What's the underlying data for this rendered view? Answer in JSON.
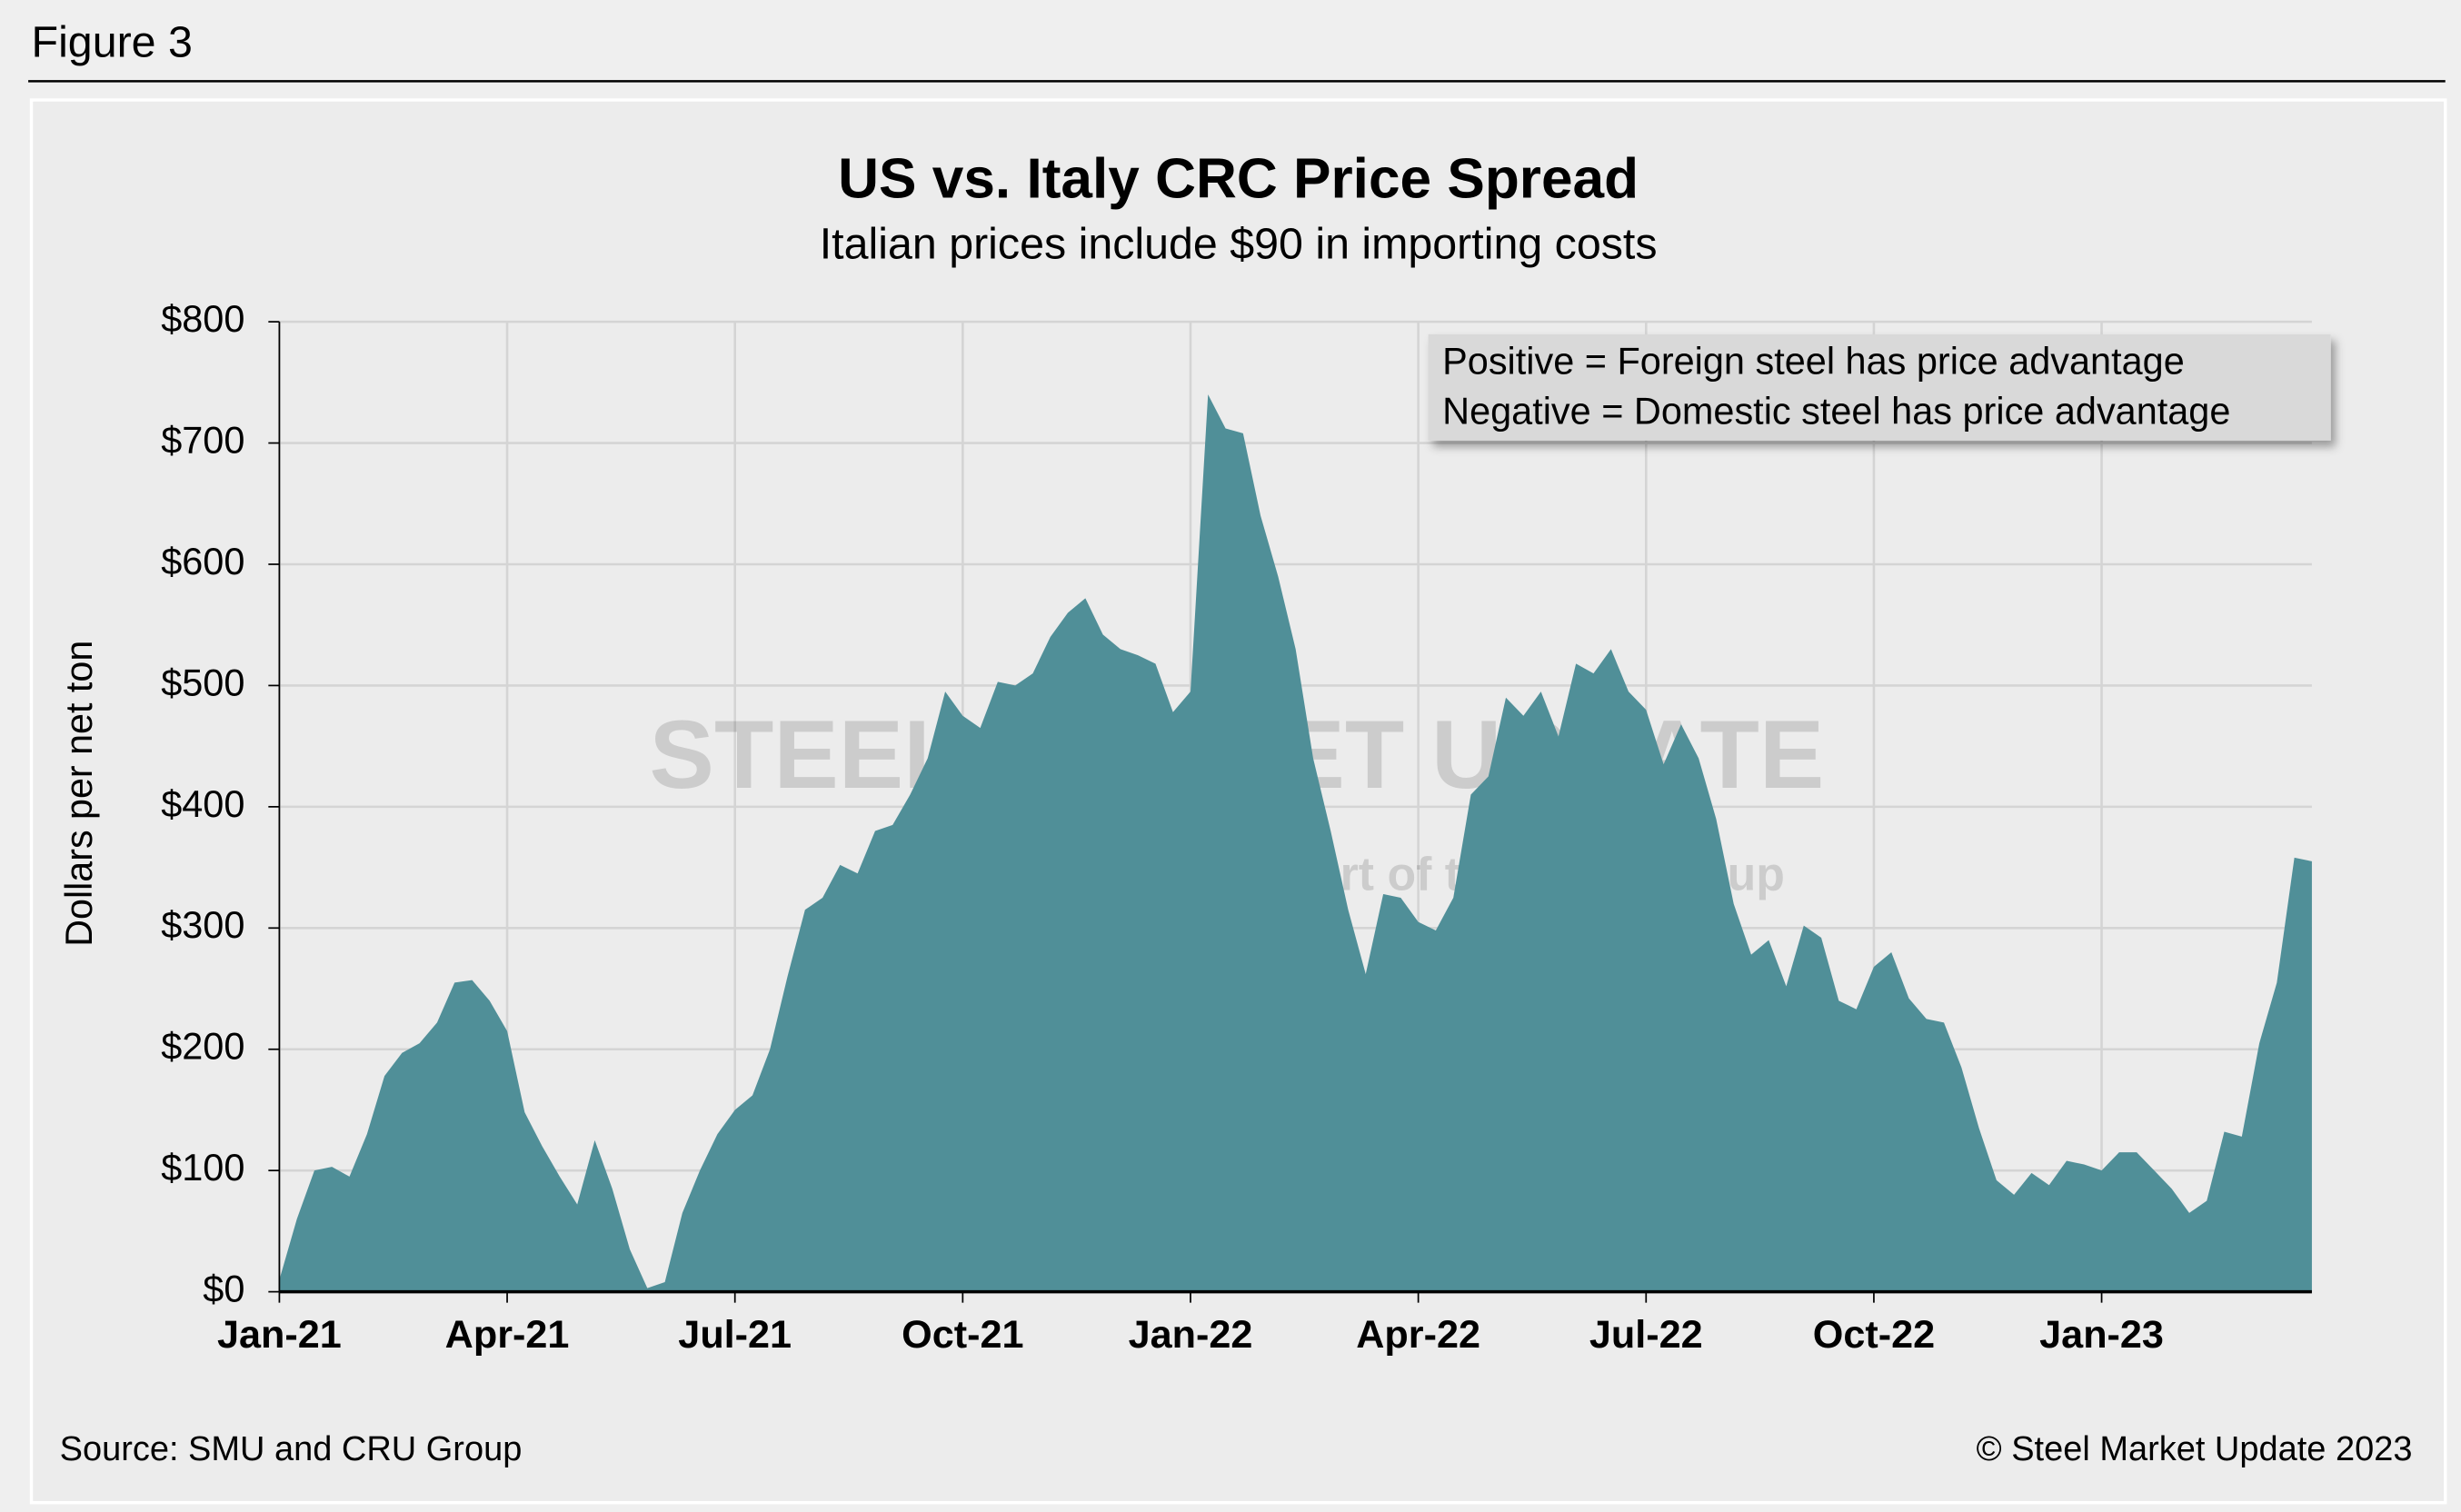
{
  "figure_label": "Figure 3",
  "source": "Source: SMU and CRU Group",
  "copyright": "© Steel Market Update 2023",
  "watermark": {
    "brand": "STEEL MARKET UPDATE",
    "tagline": "part of the CRU Group"
  },
  "chart_data": {
    "type": "area",
    "title": "US vs. Italy CRC Price Spread",
    "subtitle": "Italian prices include $90 in importing costs",
    "y_label": "Dollars per net ton",
    "annotation": [
      "Positive = Foreign steel has price advantage",
      "Negative = Domestic steel has price advantage"
    ],
    "color": "#508f98",
    "grid": true,
    "ylim": [
      0,
      800
    ],
    "yticks": [
      {
        "value": 0,
        "label": "$0"
      },
      {
        "value": 100,
        "label": "$100"
      },
      {
        "value": 200,
        "label": "$200"
      },
      {
        "value": 300,
        "label": "$300"
      },
      {
        "value": 400,
        "label": "$400"
      },
      {
        "value": 500,
        "label": "$500"
      },
      {
        "value": 600,
        "label": "$600"
      },
      {
        "value": 700,
        "label": "$700"
      },
      {
        "value": 800,
        "label": "$800"
      }
    ],
    "categories": [
      "Jan-21",
      null,
      null,
      null,
      null,
      null,
      null,
      null,
      null,
      null,
      null,
      null,
      null,
      "Apr-21",
      null,
      null,
      null,
      null,
      null,
      null,
      null,
      null,
      null,
      null,
      null,
      null,
      "Jul-21",
      null,
      null,
      null,
      null,
      null,
      null,
      null,
      null,
      null,
      null,
      null,
      null,
      "Oct-21",
      null,
      null,
      null,
      null,
      null,
      null,
      null,
      null,
      null,
      null,
      null,
      null,
      "Jan-22",
      null,
      null,
      null,
      null,
      null,
      null,
      null,
      null,
      null,
      null,
      null,
      null,
      "Apr-22",
      null,
      null,
      null,
      null,
      null,
      null,
      null,
      null,
      null,
      null,
      null,
      null,
      "Jul-22",
      null,
      null,
      null,
      null,
      null,
      null,
      null,
      null,
      null,
      null,
      null,
      null,
      "Oct-22",
      null,
      null,
      null,
      null,
      null,
      null,
      null,
      null,
      null,
      null,
      null,
      null,
      "Jan-23",
      null,
      null,
      null,
      null,
      null,
      null,
      null,
      null,
      null,
      null,
      null,
      null
    ],
    "values": [
      10,
      60,
      100,
      103,
      95,
      130,
      178,
      197,
      205,
      222,
      255,
      257,
      240,
      215,
      148,
      120,
      95,
      72,
      125,
      85,
      35,
      3,
      8,
      65,
      100,
      130,
      150,
      162,
      200,
      260,
      315,
      325,
      352,
      345,
      380,
      385,
      410,
      440,
      495,
      475,
      465,
      503,
      500,
      510,
      540,
      560,
      572,
      542,
      530,
      525,
      518,
      478,
      495,
      740,
      712,
      708,
      640,
      590,
      530,
      440,
      380,
      315,
      262,
      328,
      325,
      305,
      298,
      325,
      410,
      425,
      490,
      475,
      495,
      458,
      518,
      510,
      530,
      495,
      480,
      435,
      468,
      440,
      390,
      320,
      278,
      290,
      252,
      302,
      292,
      240,
      233,
      268,
      280,
      242,
      225,
      222,
      185,
      135,
      92,
      80,
      98,
      88,
      108,
      105,
      100,
      115,
      115,
      100,
      85,
      65,
      75,
      132,
      128,
      205,
      255,
      358,
      355
    ]
  }
}
